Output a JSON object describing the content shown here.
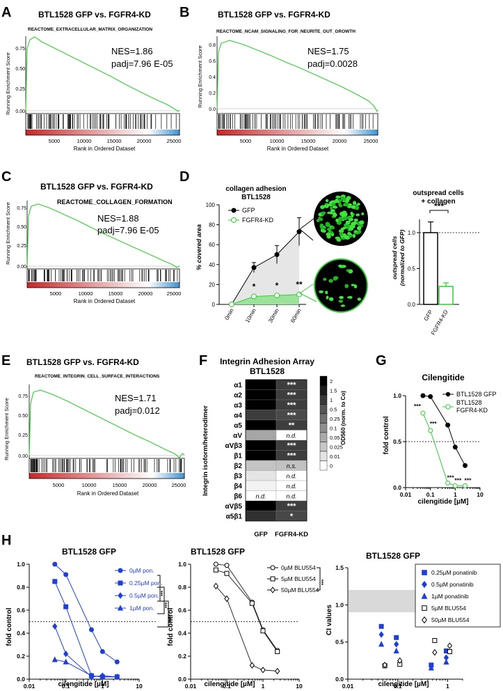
{
  "panels": {
    "A": {
      "letter": "A",
      "title": "BTL1528 GFP vs. FGFR4-KD",
      "gene_set": "REACTOME_EXTRACELLULAR_MATRIX_ORGANIZATION",
      "nes": "NES=1.86",
      "padj": "padj=7.96 E-05",
      "ylabel": "Running Enrichment Score",
      "xlabel": "Rank in Ordered Dataset",
      "yticks": [
        "0.75",
        "0.50",
        "0.25",
        "0.00"
      ],
      "xticks": [
        "5000",
        "10000",
        "15000",
        "20000",
        "25000"
      ]
    },
    "B": {
      "letter": "B",
      "title": "BTL1528 GFP vs. FGFR4-KD",
      "gene_set": "REACTOME_NCAM_SIGNALING_FOR_NEURITE_OUT_GROWTH",
      "nes": "NES=1.75",
      "padj": "padj=0.0028",
      "ylabel": "Running Enrichment Score",
      "xlabel": "Rank in Ordered Dataset",
      "yticks": [
        "0.8",
        "0.6",
        "0.4",
        "0.2",
        "0.0"
      ],
      "xticks": [
        "5000",
        "10000",
        "15000",
        "20000",
        "25000"
      ]
    },
    "C": {
      "letter": "C",
      "title": "BTL1528 GFP vs. FGFR4-KD",
      "gene_set": "REACTOME_COLLAGEN_FORMATION",
      "nes": "NES=1.88",
      "padj": "padj=7.96 E-05",
      "ylabel": "Running Enrichment Score",
      "xlabel": "Rank in Ordered Dataset",
      "yticks": [
        "0.75",
        "0.50",
        "0.25",
        "0.00"
      ],
      "xticks": [
        "5000",
        "10000",
        "15000",
        "20000",
        "25000"
      ]
    },
    "E": {
      "letter": "E",
      "title": "BTL1528 GFP vs. FGFR4-KD",
      "gene_set": "REACTOME_INTEGRIN_CELL_SURFACE_INTERACTIONS",
      "nes": "NES=1.71",
      "padj": "padj=0.012",
      "ylabel": "Running Enrichment Score",
      "xlabel": "Rank in Ordered Dataset",
      "yticks": [
        "0.75",
        "0.50",
        "0.25",
        "0.00"
      ],
      "xticks": [
        "5000",
        "10000",
        "15000",
        "20000",
        "25000"
      ]
    },
    "D": {
      "letter": "D",
      "title1": "collagen adhesion",
      "title2": "BTL1528",
      "ylabel": "% covered area",
      "legend_gfp": "GFP",
      "legend_kd": "FGFR4-KD",
      "right_title1": "outspread cells",
      "right_title2": "+ collagen",
      "right_ylabel1": "outspread cells",
      "right_ylabel2": "(normalized to GFP)",
      "right_sig": "***",
      "right_categories": [
        "GFP",
        "FGFR4-KD"
      ],
      "right_yticks": [
        "1.0",
        "0.5",
        "0.0"
      ]
    },
    "F": {
      "letter": "F",
      "title1": "Integrin Adhesion Array",
      "title2": "BTL1528",
      "ylabel": "Integrin isoform/heterodimer",
      "cbar_label": "OD560 (norm. to Co)",
      "cbar_ticks": [
        "2",
        "1.5",
        "1",
        "0.5",
        "0.25",
        "0.1",
        "0.05",
        "0.025",
        "0.01",
        "0"
      ],
      "col_labels": [
        "GFP",
        "FGFR4-KD"
      ]
    },
    "G": {
      "letter": "G",
      "title": "Cilengitide",
      "ylabel": "fold control",
      "xlabel": "cilengitide [µM]",
      "legend_gfp": "BTL1528 GFP",
      "legend_kd1": "BTL1528",
      "legend_kd2": "FGFR4-KD",
      "yticks": [
        "1.0",
        "0.5",
        "0.0"
      ],
      "xticks": [
        "0.01",
        "0.1",
        "1",
        "10"
      ]
    },
    "H": {
      "letter": "H",
      "h1_title": "BTL1528 GFP",
      "h2_title": "BTL1528 GFP",
      "h3_title": "BTL1528 GFP",
      "ylabel": "fold control",
      "ylabel_ci": "CI values",
      "xlabel": "cilengitide [µM]",
      "h1_yticks": [
        "1.0",
        "0.8",
        "0.6",
        "0.4",
        "0.2",
        "0.0"
      ],
      "h3_yticks": [
        "1.5",
        "1.0",
        "0.5",
        "0.0"
      ],
      "xticks": [
        "0.01",
        "0.1",
        "1",
        "10"
      ]
    }
  },
  "chart_data": [
    {
      "panel": "A",
      "type": "line",
      "title": "BTL1528 GFP vs. FGFR4-KD",
      "xlabel": "Rank in Ordered Dataset",
      "ylabel": "Running Enrichment Score",
      "xlim": [
        0,
        26000
      ],
      "ylim": [
        -0.05,
        0.9
      ],
      "x": [
        0,
        300,
        800,
        2000,
        5000,
        10000,
        15000,
        20000,
        24000,
        25500
      ],
      "y": [
        0.0,
        0.6,
        0.83,
        0.8,
        0.69,
        0.5,
        0.32,
        0.15,
        0.03,
        0.0
      ],
      "annotations": [
        "NES=1.86",
        "padj=7.96 E-05"
      ]
    },
    {
      "panel": "B",
      "type": "line",
      "title": "BTL1528 GFP vs. FGFR4-KD",
      "xlabel": "Rank in Ordered Dataset",
      "ylabel": "Running Enrichment Score",
      "xlim": [
        0,
        26000
      ],
      "ylim": [
        -0.05,
        0.9
      ],
      "x": [
        0,
        300,
        1000,
        2000,
        5000,
        10000,
        15000,
        20000,
        24000,
        25500
      ],
      "y": [
        0.0,
        0.6,
        0.84,
        0.83,
        0.72,
        0.52,
        0.33,
        0.15,
        0.04,
        0.0
      ],
      "annotations": [
        "NES=1.75",
        "padj=0.0028"
      ]
    },
    {
      "panel": "C",
      "type": "line",
      "title": "BTL1528 GFP vs. FGFR4-KD",
      "xlabel": "Rank in Ordered Dataset",
      "ylabel": "Running Enrichment Score",
      "xlim": [
        0,
        26000
      ],
      "ylim": [
        -0.05,
        0.95
      ],
      "x": [
        0,
        300,
        1000,
        2000,
        5000,
        10000,
        15000,
        20000,
        24000,
        25500
      ],
      "y": [
        0.0,
        0.62,
        0.88,
        0.87,
        0.74,
        0.55,
        0.35,
        0.17,
        0.04,
        0.0
      ],
      "annotations": [
        "NES=1.88",
        "padj=7.96 E-05"
      ]
    },
    {
      "panel": "E",
      "type": "line",
      "title": "BTL1528 GFP vs. FGFR4-KD",
      "xlabel": "Rank in Ordered Dataset",
      "ylabel": "Running Enrichment Score",
      "xlim": [
        0,
        26000
      ],
      "ylim": [
        -0.05,
        0.85
      ],
      "x": [
        0,
        300,
        1000,
        2000,
        5000,
        10000,
        15000,
        20000,
        24000,
        25500
      ],
      "y": [
        0.0,
        0.55,
        0.78,
        0.77,
        0.66,
        0.48,
        0.3,
        0.13,
        0.03,
        0.0
      ],
      "annotations": [
        "NES=1.71",
        "padj=0.012"
      ]
    },
    {
      "panel": "D",
      "type": "line",
      "title": "collagen adhesion BTL1528",
      "ylabel": "% covered area",
      "ylim": [
        0,
        100
      ],
      "categories": [
        "0min",
        "10min",
        "30min",
        "60min"
      ],
      "series": [
        {
          "name": "GFP",
          "values": [
            0,
            37,
            50,
            73
          ],
          "errors": [
            0,
            5,
            9,
            14
          ]
        },
        {
          "name": "FGFR4-KD",
          "values": [
            0,
            8,
            9,
            10
          ],
          "errors": [
            0,
            1,
            1,
            1
          ]
        }
      ],
      "significance": [
        "",
        "*",
        "*",
        "**"
      ],
      "yticks": [
        0,
        20,
        40,
        60,
        80,
        100
      ]
    },
    {
      "panel": "D-right",
      "type": "bar",
      "title": "outspread cells + collagen",
      "ylabel": "outspread cells (normalized to GFP)",
      "ylim": [
        0,
        1.3
      ],
      "categories": [
        "GFP",
        "FGFR4-KD"
      ],
      "values": [
        1.0,
        0.25
      ],
      "errors": [
        0.15,
        0.05
      ],
      "significance": "***"
    },
    {
      "panel": "F",
      "type": "heatmap",
      "title": "Integrin Adhesion Array BTL1528",
      "ylabel": "Integrin isoform/heterodimer",
      "columns": [
        "GFP",
        "FGFR4-KD"
      ],
      "rows": [
        "α1",
        "α2",
        "α3",
        "α4",
        "α5",
        "αV",
        "αVβ3",
        "β1",
        "β2",
        "β3",
        "β4",
        "β6",
        "αVβ5",
        "α5β1"
      ],
      "colors": [
        [
          "#000000",
          "#3e3e3e"
        ],
        [
          "#000000",
          "#3e3e3e"
        ],
        [
          "#000000",
          "#3e3e3e"
        ],
        [
          "#3c3c3c",
          "#4a4a4a"
        ],
        [
          "#000000",
          "#3e3e3e"
        ],
        [
          "#a6a6a6",
          "#ffffff"
        ],
        [
          "#000000",
          "#3e3e3e"
        ],
        [
          "#000000",
          "#3e3e3e"
        ],
        [
          "#c4c4c4",
          "#c2c2c2"
        ],
        [
          "#e4e4e4",
          "#ffffff"
        ],
        [
          "#f2f2f2",
          "#ffffff"
        ],
        [
          "#ffffff",
          "#ffffff"
        ],
        [
          "#000000",
          "#3e3e3e"
        ],
        [
          "#303030",
          "#484848"
        ]
      ],
      "cell_labels": [
        [
          "",
          "***"
        ],
        [
          "",
          "***"
        ],
        [
          "",
          "***"
        ],
        [
          "",
          "***"
        ],
        [
          "",
          "**"
        ],
        [
          "",
          "n.d."
        ],
        [
          "",
          "***"
        ],
        [
          "",
          "***"
        ],
        [
          "",
          "n.s."
        ],
        [
          "",
          "n.d."
        ],
        [
          "",
          "n.d."
        ],
        [
          "n.d.",
          "n.d."
        ],
        [
          "",
          "***"
        ],
        [
          "",
          "*"
        ]
      ],
      "colorbar_ticks": [
        "2",
        "1.5",
        "1",
        "0.5",
        "0.25",
        "0.1",
        "0.05",
        "0.025",
        "0.01",
        "0"
      ]
    },
    {
      "panel": "G",
      "type": "line",
      "title": "Cilengitide",
      "xlabel": "cilengitide [µM]",
      "ylabel": "fold control",
      "xscale": "log",
      "xlim": [
        0.01,
        10
      ],
      "ylim": [
        0,
        1.05
      ],
      "x": [
        0.05,
        0.1,
        0.5,
        1,
        2.5
      ],
      "series": [
        {
          "name": "BTL1528 GFP",
          "values": [
            1.0,
            0.99,
            0.68,
            0.44,
            0.24
          ]
        },
        {
          "name": "BTL1528 FGFR4-KD",
          "values": [
            0.81,
            0.62,
            0.05,
            0.02,
            0.02
          ]
        }
      ],
      "significance": [
        "***",
        "***",
        "***",
        "***",
        "***"
      ],
      "reference_line": 0.5
    },
    {
      "panel": "H1",
      "type": "line",
      "title": "BTL1528 GFP",
      "xlabel": "cilengitide [µM]",
      "ylabel": "fold control",
      "xscale": "log",
      "xlim": [
        0.01,
        10
      ],
      "ylim": [
        0,
        1.0
      ],
      "x": [
        0.05,
        0.1,
        0.5,
        1,
        2.5
      ],
      "series": [
        {
          "name": "0µM pon.",
          "marker": "circle",
          "values": [
            1.0,
            0.91,
            0.43,
            0.24,
            0.15
          ]
        },
        {
          "name": "0.25µM pon.",
          "marker": "square",
          "values": [
            0.85,
            0.63,
            0.03,
            0.02,
            0.02
          ]
        },
        {
          "name": "0.5µM pon.",
          "marker": "diamond",
          "values": [
            0.46,
            0.22,
            0.02,
            0.03,
            0.02
          ]
        },
        {
          "name": "1µM pon.",
          "marker": "triangle",
          "values": [
            0.17,
            0.15,
            0.03,
            0.02,
            0.02
          ]
        }
      ],
      "significance": [
        "***",
        "***",
        "***"
      ],
      "reference_line": 0.5
    },
    {
      "panel": "H2",
      "type": "line",
      "title": "BTL1528 GFP",
      "xlabel": "cilengitide [µM]",
      "ylabel": "fold control",
      "xscale": "log",
      "xlim": [
        0.01,
        10
      ],
      "ylim": [
        0,
        1.0
      ],
      "x": [
        0.05,
        0.1,
        0.5,
        1,
        2.5
      ],
      "series": [
        {
          "name": "0µM BLU554",
          "marker": "circle",
          "values": [
            1.0,
            0.99,
            0.67,
            0.43,
            0.25
          ]
        },
        {
          "name": "5µM BLU554",
          "marker": "square",
          "values": [
            0.95,
            0.92,
            0.66,
            0.42,
            0.24
          ]
        },
        {
          "name": "50µM BLU554",
          "marker": "diamond",
          "values": [
            0.81,
            0.7,
            0.12,
            0.08,
            0.07
          ]
        }
      ],
      "significance": [
        "***"
      ],
      "reference_line": 0.5
    },
    {
      "panel": "H3",
      "type": "scatter",
      "title": "BTL1528 GFP",
      "xlabel": "cilengitide [µM]",
      "ylabel": "CI values",
      "xscale": "log",
      "xlim": [
        0.01,
        2
      ],
      "ylim": [
        0,
        1.5
      ],
      "x": [
        0.05,
        0.1,
        0.5,
        1
      ],
      "series": [
        {
          "name": "0.25µM ponatinib",
          "marker": "square-filled",
          "values": [
            0.71,
            0.56,
            0.19,
            0.38
          ]
        },
        {
          "name": "0.5µM ponatinib",
          "marker": "diamond-filled",
          "values": [
            0.6,
            0.47,
            0.17,
            0.29
          ]
        },
        {
          "name": "1µM ponatinib",
          "marker": "triangle-filled",
          "values": [
            0.47,
            0.38,
            0.15,
            0.23
          ]
        },
        {
          "name": "5µM BLU554",
          "marker": "square-open",
          "values": [
            0.18,
            0.2,
            0.52,
            0.37
          ]
        },
        {
          "name": "50µM BLU554",
          "marker": "diamond-open",
          "values": [
            0.19,
            0.25,
            0.36,
            0.45
          ]
        }
      ],
      "shaded_band": [
        0.9,
        1.2
      ]
    }
  ]
}
